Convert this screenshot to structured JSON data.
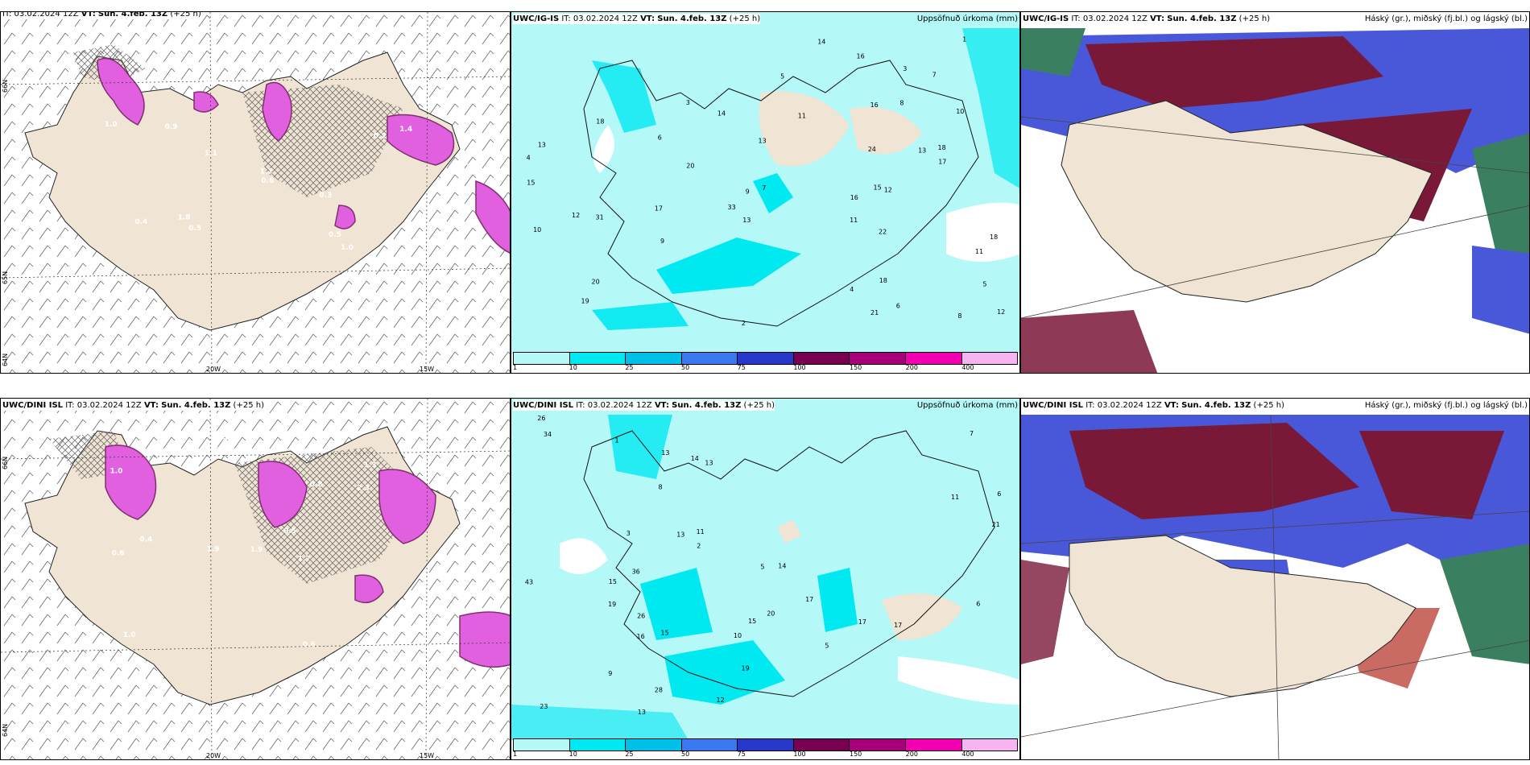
{
  "panels": {
    "p1": {
      "model_bold": "",
      "it_label": "IT:",
      "it_value": "03.02.2024 12Z",
      "vt_label": "VT:",
      "vt_value": "Sun. 4.feb. 13Z",
      "lead": "(+25 h)",
      "right_title": ""
    },
    "p2": {
      "model_bold": "UWC/IG-IS",
      "it_label": "IT:",
      "it_value": "03.02.2024 12Z",
      "vt_label": "VT:",
      "vt_value": "Sun. 4.feb. 13Z",
      "lead": "(+25 h)",
      "right_title": "Uppsöfnuð úrkoma (mm)"
    },
    "p3": {
      "model_bold": "UWC/IG-IS",
      "it_label": "IT:",
      "it_value": "03.02.2024 12Z",
      "vt_label": "VT:",
      "vt_value": "Sun. 4.feb. 13Z",
      "lead": "(+25 h)",
      "right_title": "Háský (gr.), miðský (fj.bl.) og lágský (bl.)"
    },
    "p4": {
      "model_bold": "UWC/DINI ISL",
      "it_label": "IT:",
      "it_value": "03.02.2024 12Z",
      "vt_label": "VT:",
      "vt_value": "Sun. 4.feb. 13Z",
      "lead": "(+25 h)",
      "right_title": ""
    },
    "p5": {
      "model_bold": "UWC/DINI ISL",
      "it_label": "IT:",
      "it_value": "03.02.2024 12Z",
      "vt_label": "VT:",
      "vt_value": "Sun. 4.feb. 13Z",
      "lead": "(+25 h)",
      "right_title": "Uppsöfnuð úrkoma (mm)"
    },
    "p6": {
      "model_bold": "UWC/DINI ISL",
      "it_label": "IT:",
      "it_value": "03.02.2024 12Z",
      "vt_label": "VT:",
      "vt_value": "Sun. 4.feb. 13Z",
      "lead": "(+25 h)",
      "right_title": "Háský (gr.), miðský (fj.bl.) og lágský (bl.)"
    }
  },
  "axes": {
    "lon_labels": [
      "20W",
      "15W"
    ],
    "lat_labels": [
      "66N",
      "65N",
      "64N"
    ]
  },
  "precip_scale": {
    "ticks": [
      "1",
      "10",
      "25",
      "50",
      "75",
      "100",
      "150",
      "200",
      "400"
    ],
    "colors": [
      "#b4f8f8",
      "#00e8f0",
      "#00c0e8",
      "#3a78f0",
      "#2838c8",
      "#780050",
      "#a80078",
      "#f000b0",
      "#f8b4f0"
    ]
  },
  "colors": {
    "land": "#f0e4d4",
    "sea_precip": "#b4f8f8",
    "precip_mid": "#00e8f0",
    "snow_magenta": "#e060e0",
    "snow_dark": "#80306c",
    "cloud_high": "#7a1838",
    "cloud_mid": "#4858d8",
    "cloud_low": "#3a8060"
  },
  "map_values": {
    "p1_snow": [
      "1.0",
      "2.1",
      "1.8",
      "0.9",
      "1.4",
      "0.5",
      "0.7",
      "1.1",
      "0.6",
      "0.5",
      "0.4",
      "1.0",
      "1.2",
      "0.3",
      "0.2"
    ],
    "p2_precip": [
      "11",
      "18",
      "13",
      "11",
      "4",
      "8",
      "18",
      "13",
      "5",
      "6",
      "15",
      "16",
      "10",
      "22",
      "9",
      "8",
      "7",
      "12",
      "3",
      "14",
      "13",
      "15",
      "24",
      "16",
      "17",
      "20",
      "18",
      "16",
      "12",
      "31",
      "10",
      "14",
      "13",
      "18",
      "20",
      "19",
      "11",
      "7",
      "12",
      "21",
      "33",
      "17",
      "5",
      "2",
      "4",
      "3",
      "1",
      "6",
      "9"
    ],
    "p4_snow": [
      "0.9",
      "1.3",
      "2.1",
      "1.9",
      "1.7",
      "0.4",
      "1.0",
      "2.3",
      "0.6",
      "0.8",
      "0.5",
      "1.0",
      "2.2",
      "1.9",
      "0.6"
    ],
    "p5_precip": [
      "34",
      "26",
      "43",
      "7",
      "6",
      "5",
      "13",
      "15",
      "23",
      "17",
      "16",
      "14",
      "13",
      "19",
      "15",
      "13",
      "10",
      "9",
      "8",
      "11",
      "21",
      "19",
      "28",
      "36",
      "15",
      "20",
      "26",
      "17",
      "12",
      "14",
      "17",
      "13",
      "11",
      "6",
      "5",
      "3",
      "1",
      "2"
    ]
  }
}
